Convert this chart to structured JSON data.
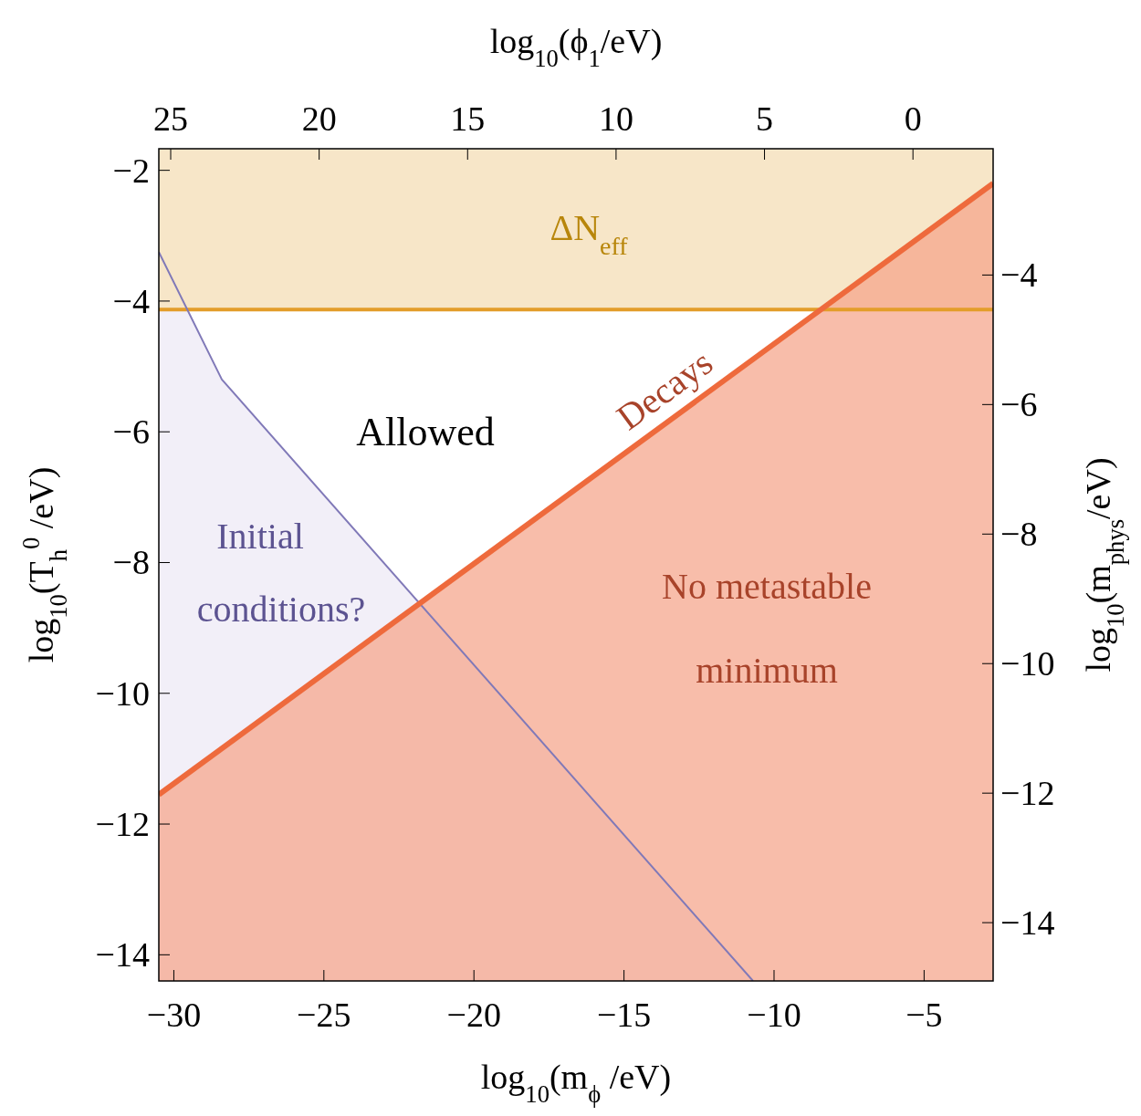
{
  "chart_data": {
    "type": "line",
    "xlabel": "log$_{10}$(m$_{ϕ}$ /eV)",
    "ylabel": "log$_{10}$(T$_{h}$$^{0}$ /eV)",
    "x2label": "log$_{10}$(ϕ$_{1}$/eV)",
    "y2label": "log$_{10}$(m$_{phys}$/eV)",
    "xlim": [
      -30.5,
      -2.7
    ],
    "xticks": [
      {
        "value": -30,
        "label": "−30"
      },
      {
        "value": -25,
        "label": "−25"
      },
      {
        "value": -20,
        "label": "−20"
      },
      {
        "value": -15,
        "label": "−15"
      },
      {
        "value": -10,
        "label": "−10"
      },
      {
        "value": -5,
        "label": "−5"
      }
    ],
    "ylim": [
      -14.4,
      -1.67
    ],
    "yticks": [
      {
        "value": -14,
        "label": "−14"
      },
      {
        "value": -12,
        "label": "−12"
      },
      {
        "value": -10,
        "label": "−10"
      },
      {
        "value": -8,
        "label": "−8"
      },
      {
        "value": -6,
        "label": "−6"
      },
      {
        "value": -4,
        "label": "−4"
      },
      {
        "value": -2,
        "label": "−2"
      }
    ],
    "x2lim": [
      25.4,
      -2.7
    ],
    "x2ticks": [
      25,
      20,
      15,
      10,
      5,
      0
    ],
    "y2lim": [
      -14.9,
      -2.05
    ],
    "y2ticks": [
      {
        "value": -14,
        "label": "−14"
      },
      {
        "value": -12,
        "label": "−12"
      },
      {
        "value": -10,
        "label": "−10"
      },
      {
        "value": -8,
        "label": "−8"
      },
      {
        "value": -6,
        "label": "−6"
      },
      {
        "value": -4,
        "label": "−4"
      }
    ],
    "series": [
      {
        "color": "#8079b8",
        "x": [
          -30.5,
          -28.4,
          -10.7
        ],
        "values": [
          -3.25,
          -5.2,
          -14.4
        ],
        "lower": [
          -14.4,
          -14.4,
          -14.4
        ],
        "upper": [
          -3.25,
          -5.2,
          -14.4
        ]
      },
      {
        "color": "#ee6a3c",
        "x": [
          -30.5,
          -2.7
        ],
        "values": [
          -11.55,
          -2.2
        ],
        "lower": [
          -14.4,
          -14.4
        ],
        "upper": [
          -11.55,
          -2.2
        ]
      }
    ],
    "bands": [
      {
        "axis": "y",
        "from": -4.13,
        "to": -1.67,
        "color": "#f7e6c8"
      }
    ],
    "ref_lines": [
      {
        "axis": "y",
        "value": -4.13,
        "color": "#e39d2a"
      }
    ],
    "annotations": [
      "ΔN$_{eff}$",
      "Allowed",
      "Initial",
      "conditions?",
      "No metastable",
      "minimum",
      "Decays"
    ],
    "grid": false
  }
}
